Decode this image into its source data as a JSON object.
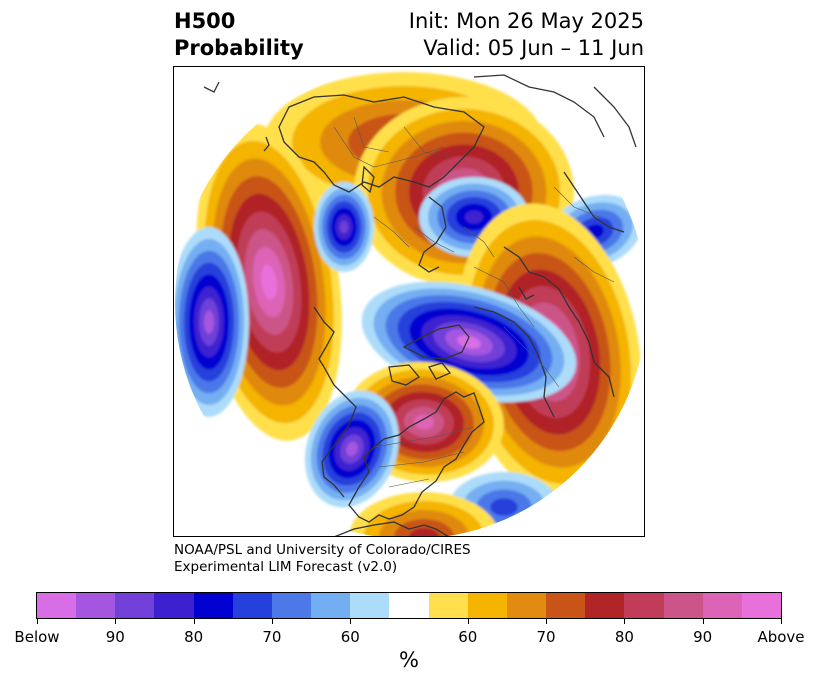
{
  "header": {
    "title_line1": "H500",
    "title_line2": "Probability",
    "init": "Init: Mon 26 May 2025",
    "valid": "Valid: 05 Jun – 11 Jun"
  },
  "credit": {
    "line1": "NOAA/PSL and University of Colorado/CIRES",
    "line2": "Experimental LIM Forecast (v2.0)"
  },
  "colorbar": {
    "unit": "%",
    "colors": [
      "#d86ee6",
      "#a456e0",
      "#7040d8",
      "#3c20d0",
      "#0000d0",
      "#2640dc",
      "#4c78e8",
      "#74aef2",
      "#acdcfa",
      "#ffffff",
      "#ffe04c",
      "#f4b400",
      "#e08a10",
      "#c85418",
      "#b02428",
      "#c03c58",
      "#cc5488",
      "#dc64b6",
      "#e870da"
    ],
    "tick_labels": [
      "Below",
      "90",
      "80",
      "70",
      "60",
      "60",
      "70",
      "80",
      "90",
      "Above"
    ]
  },
  "map": {
    "projection": "polar-stereographic",
    "blobs": [
      {
        "id": "west-pacific-above",
        "category": "above",
        "peak": "Above"
      },
      {
        "id": "pacific-negative-west",
        "category": "below",
        "peak": "90"
      },
      {
        "id": "alaska-sea-above",
        "category": "above",
        "peak": "90"
      },
      {
        "id": "north-atlantic-negative",
        "category": "below",
        "peak": "Below"
      },
      {
        "id": "europe-russia-above",
        "category": "above",
        "peak": "Above"
      },
      {
        "id": "north-america-above",
        "category": "above",
        "peak": "90"
      },
      {
        "id": "central-asia-negative",
        "category": "below",
        "peak": "80"
      },
      {
        "id": "siberia-above",
        "category": "above",
        "peak": "70"
      }
    ]
  }
}
